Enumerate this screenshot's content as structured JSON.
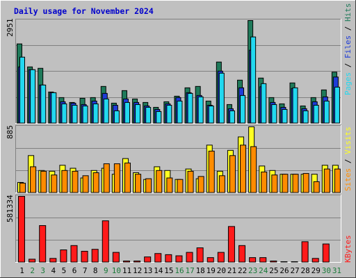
{
  "title": "Daily usage for November 2024",
  "legend_top": {
    "pages": "Pages",
    "files": "Files",
    "hits": "Hits",
    "sep": " / "
  },
  "legend_mid": {
    "sites": "Sites",
    "visits": "Visits",
    "sep": " / "
  },
  "legend_bottom": {
    "kbytes": "KBytes"
  },
  "colors": {
    "hits": "#1f7a5a",
    "files": "#1e3cd8",
    "pages": "#22d8f0",
    "visits": "#ffff22",
    "sites": "#ff8c00",
    "kbytes": "#ff1a1a",
    "plot_bg": "#c0c0c0",
    "title": "#0000cc",
    "weekday": "#000000",
    "weekend": "#1a7a3a"
  },
  "chart_data": [
    {
      "type": "bar",
      "panel": "hits-files-pages",
      "ymax_label": "2951",
      "ylim": [
        0,
        2951
      ],
      "categories": [
        "1",
        "2",
        "3",
        "4",
        "5",
        "6",
        "7",
        "8",
        "9",
        "10",
        "11",
        "12",
        "13",
        "14",
        "15",
        "16",
        "17",
        "18",
        "19",
        "20",
        "21",
        "22",
        "23",
        "24",
        "25",
        "26",
        "27",
        "28",
        "29",
        "30",
        "31"
      ],
      "series": [
        {
          "name": "Hits",
          "values": [
            2280,
            1620,
            1580,
            900,
            740,
            600,
            720,
            740,
            1060,
            580,
            940,
            700,
            600,
            460,
            620,
            780,
            1020,
            1060,
            640,
            1760,
            540,
            1240,
            2951,
            1300,
            740,
            560,
            1160,
            500,
            740,
            960,
            1470
          ]
        },
        {
          "name": "Files",
          "values": [
            1620,
            1540,
            1100,
            880,
            620,
            580,
            540,
            640,
            860,
            520,
            700,
            600,
            500,
            400,
            560,
            740,
            880,
            800,
            520,
            1500,
            420,
            1020,
            2100,
            1050,
            600,
            460,
            1000,
            420,
            620,
            760,
            1330
          ]
        },
        {
          "name": "Pages",
          "values": [
            1900,
            1540,
            1100,
            880,
            560,
            520,
            500,
            560,
            700,
            360,
            600,
            540,
            460,
            340,
            520,
            640,
            860,
            760,
            500,
            1440,
            360,
            800,
            2480,
            1140,
            540,
            400,
            1020,
            360,
            520,
            640,
            1040
          ]
        }
      ]
    },
    {
      "type": "bar",
      "panel": "visits-sites",
      "ymax_label": "885",
      "ylim": [
        0,
        885
      ],
      "categories": [
        "1",
        "2",
        "3",
        "4",
        "5",
        "6",
        "7",
        "8",
        "9",
        "10",
        "11",
        "12",
        "13",
        "14",
        "15",
        "16",
        "17",
        "18",
        "19",
        "20",
        "21",
        "22",
        "23",
        "24",
        "25",
        "26",
        "27",
        "28",
        "29",
        "30",
        "31"
      ],
      "series": [
        {
          "name": "Visits",
          "values": [
            140,
            500,
            300,
            290,
            370,
            330,
            200,
            300,
            330,
            250,
            460,
            270,
            180,
            350,
            300,
            180,
            320,
            190,
            640,
            290,
            570,
            750,
            885,
            360,
            300,
            250,
            250,
            250,
            250,
            370,
            370
          ]
        },
        {
          "name": "Sites",
          "values": [
            130,
            350,
            290,
            240,
            300,
            290,
            230,
            270,
            390,
            390,
            400,
            250,
            190,
            300,
            200,
            180,
            290,
            220,
            560,
            230,
            500,
            640,
            620,
            280,
            240,
            250,
            250,
            260,
            150,
            320,
            320
          ]
        }
      ]
    },
    {
      "type": "bar",
      "panel": "kbytes",
      "ymax_label": "581334",
      "ylim": [
        0,
        581334
      ],
      "categories": [
        "1",
        "2",
        "3",
        "4",
        "5",
        "6",
        "7",
        "8",
        "9",
        "10",
        "11",
        "12",
        "13",
        "14",
        "15",
        "16",
        "17",
        "18",
        "19",
        "20",
        "21",
        "22",
        "23",
        "24",
        "25",
        "26",
        "27",
        "28",
        "29",
        "30",
        "31"
      ],
      "series": [
        {
          "name": "KBytes",
          "values": [
            581334,
            28000,
            324000,
            35000,
            110000,
            148000,
            98000,
            115000,
            366000,
            88000,
            12000,
            12000,
            48000,
            78000,
            68000,
            58000,
            88000,
            128000,
            42000,
            88000,
            316000,
            148000,
            42000,
            42000,
            12000,
            6000,
            6000,
            182000,
            35000,
            162000,
            0
          ]
        }
      ]
    }
  ]
}
